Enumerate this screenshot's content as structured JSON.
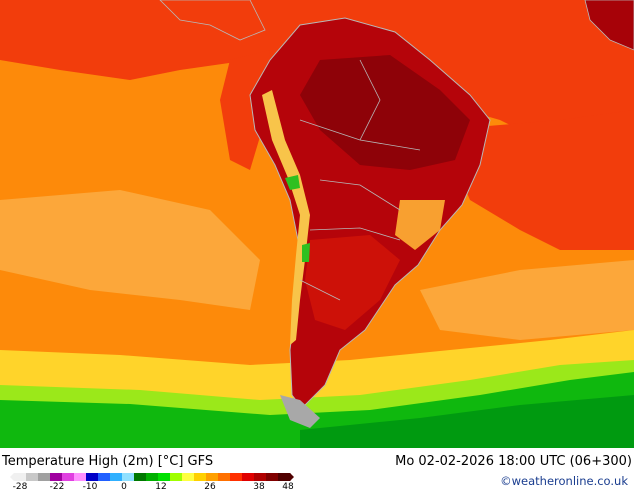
{
  "map": {
    "title": "Temperature High (2m) [°C] GFS",
    "datetime": "Mo 02-02-2026 18:00 UTC (06+300)",
    "copyright": "©weatheronline.co.uk",
    "legend": {
      "ticks": [
        "-28",
        "-22",
        "-10",
        "0",
        "12",
        "26",
        "38",
        "48"
      ],
      "colors": [
        "#f0f0f0",
        "#c8c8c8",
        "#a0a0a0",
        "#a000a0",
        "#e040e0",
        "#ff90ff",
        "#0000c8",
        "#2060ff",
        "#30b0ff",
        "#90e0ff",
        "#007800",
        "#00b000",
        "#00e000",
        "#a0ff00",
        "#ffff40",
        "#ffd000",
        "#ffa000",
        "#ff7000",
        "#ff3000",
        "#e00000",
        "#b00000",
        "#800000",
        "#500000"
      ]
    },
    "palette": {
      "ocean_orange": "#fd8a0a",
      "tropical_red": "#f23d0c",
      "land_dark_red": "#a70208",
      "land_red": "#cd1108",
      "andes_yellow": "#f8c44a",
      "south_green": "#0fb80e",
      "border_gray": "#b8b8b8"
    }
  }
}
